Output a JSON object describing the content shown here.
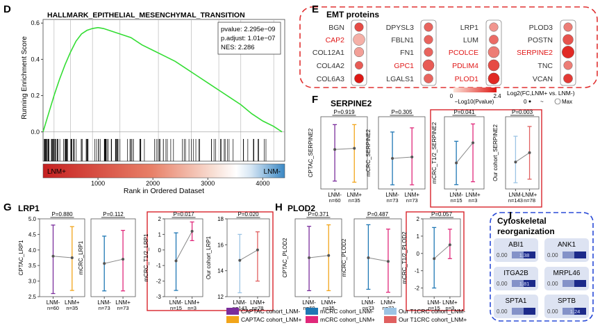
{
  "panel_labels": [
    "D",
    "E",
    "F",
    "G",
    "H",
    "I"
  ],
  "gsea": {
    "title": "HALLMARK_EPITHELIAL_MESENCHYMAL_TRANSITION",
    "ylabel": "Running Enrichment Score",
    "xlabel": "Rank in Ordered Dataset",
    "yticks": [
      "0.6",
      "0.4",
      "0.2",
      "0.0"
    ],
    "xticks": [
      "1000",
      "2000",
      "3000",
      "4000"
    ],
    "stats": [
      "pvalue: 2.295e−09",
      "p.adjust: 1.01e−07",
      "NES: 2.286"
    ],
    "bar_left": "LNM+",
    "bar_right": "LNM-"
  },
  "emt": {
    "title": "EMT proteins",
    "columns": [
      [
        {
          "gene": "BGN",
          "red": false
        },
        {
          "gene": "CAP2",
          "red": true
        },
        {
          "gene": "COL12A1",
          "red": false
        },
        {
          "gene": "COL4A2",
          "red": false
        },
        {
          "gene": "COL6A3",
          "red": false
        }
      ],
      [
        {
          "gene": "DPYSL3",
          "red": false
        },
        {
          "gene": "FBLN1",
          "red": false
        },
        {
          "gene": "FN1",
          "red": false
        },
        {
          "gene": "GPC1",
          "red": true
        },
        {
          "gene": "LGALS1",
          "red": false
        }
      ],
      [
        {
          "gene": "LRP1",
          "red": false
        },
        {
          "gene": "LUM",
          "red": false
        },
        {
          "gene": "PCOLCE",
          "red": true
        },
        {
          "gene": "PDLIM4",
          "red": true
        },
        {
          "gene": "PLOD1",
          "red": true
        }
      ],
      [
        {
          "gene": "PLOD3",
          "red": false
        },
        {
          "gene": "POSTN",
          "red": false
        },
        {
          "gene": "SERPINE2",
          "red": true
        },
        {
          "gene": "TNC",
          "red": false
        },
        {
          "gene": "VCAN",
          "red": false
        }
      ]
    ],
    "legend_color_ticks": [
      "0",
      "2.4"
    ],
    "legend_color_label": "−Log10(Pvalue)",
    "legend_size_label": "Log2(FC,LNM+ vs. LNM-)",
    "legend_size_ticks": [
      "0",
      "~",
      "Max"
    ]
  },
  "box_groups": {
    "F": {
      "gene": "SERPINE2"
    },
    "G": {
      "gene": "LRP1"
    },
    "H": {
      "gene": "PLOD2"
    }
  },
  "legend": [
    {
      "label": "CAPTAC cohort_LNM-",
      "color": "#7a2d9c"
    },
    {
      "label": "CAPTAC cohort_LNM+",
      "color": "#f2a51a"
    },
    {
      "label": "mCRC cohort_LNM-",
      "color": "#1f77b4"
    },
    {
      "label": "mCRC cohort_LNM+",
      "color": "#e0287a"
    },
    {
      "label": "Our T1CRC cohort_LNM-",
      "color": "#9cc4e4"
    },
    {
      "label": "Our T1CRC cohort_LNM+",
      "color": "#e06060"
    }
  ],
  "cytoskeletal": {
    "title": "Cytoskeletal reorganization",
    "items": [
      {
        "gene": "ABI1",
        "low": "0.00",
        "high": "1.38"
      },
      {
        "gene": "ANK1",
        "low": "0.00",
        "high": ""
      },
      {
        "gene": "ITGA2B",
        "low": "0.00",
        "high": "1.81"
      },
      {
        "gene": "MRPL46",
        "low": "0.00",
        "high": ""
      },
      {
        "gene": "SPTA1",
        "low": "0.00",
        "high": ""
      },
      {
        "gene": "SPTB",
        "low": "0.00",
        "high": "1.24"
      }
    ]
  },
  "chart_data": [
    {
      "panel": "D",
      "type": "line",
      "title": "HALLMARK_EPITHELIAL_MESENCHYMAL_TRANSITION",
      "xlabel": "Rank in Ordered Dataset",
      "ylabel": "Running Enrichment Score",
      "x": [
        0,
        100,
        200,
        300,
        400,
        500,
        600,
        700,
        800,
        900,
        1000,
        1100,
        1200,
        1300,
        1400,
        1600,
        1800,
        2000,
        2200,
        2400,
        2600,
        2800,
        3000,
        3200,
        3400,
        3600,
        3800,
        4000,
        4200,
        4350
      ],
      "y": [
        0.0,
        0.1,
        0.2,
        0.29,
        0.37,
        0.44,
        0.5,
        0.54,
        0.56,
        0.57,
        0.575,
        0.57,
        0.56,
        0.55,
        0.54,
        0.52,
        0.48,
        0.45,
        0.42,
        0.39,
        0.35,
        0.31,
        0.27,
        0.23,
        0.19,
        0.15,
        0.1,
        0.06,
        0.03,
        0.0
      ],
      "xlim": [
        0,
        4400
      ],
      "ylim": [
        -0.02,
        0.62
      ]
    },
    {
      "panel": "E",
      "type": "scatter",
      "title": "EMT proteins",
      "genes": [
        "BGN",
        "CAP2",
        "COL12A1",
        "COL4A2",
        "COL6A3",
        "DPYSL3",
        "FBLN1",
        "FN1",
        "GPC1",
        "LGALS1",
        "LRP1",
        "LUM",
        "PCOLCE",
        "PDLIM4",
        "PLOD1",
        "PLOD3",
        "POSTN",
        "SERPINE2",
        "TNC",
        "VCAN"
      ],
      "neg_log10_p": [
        1.8,
        0.6,
        0.8,
        1.6,
        2.4,
        1.5,
        1.5,
        1.5,
        1.6,
        1.5,
        0.9,
        1.4,
        1.2,
        1.8,
        2.2,
        1.2,
        1.7,
        2.2,
        1.2,
        2.0
      ],
      "log2fc_relative": [
        0.55,
        0.9,
        0.65,
        0.45,
        0.6,
        0.55,
        0.55,
        0.55,
        0.85,
        0.6,
        0.55,
        0.6,
        0.85,
        0.85,
        0.85,
        0.55,
        0.75,
        0.95,
        0.55,
        0.6
      ]
    },
    {
      "panel": "F",
      "gene": "SERPINE2",
      "type": "errorbar",
      "charts": [
        {
          "ylabel": "CPTAC_SERPINE2",
          "p": "P=0.919",
          "categories": [
            "LNM-\nn=60",
            "LNM+\nn=35"
          ],
          "colors": [
            "#7a2d9c",
            "#f2a51a"
          ],
          "mean": [
            0.85,
            0.9
          ],
          "low": [
            -0.55,
            -0.6
          ],
          "high": [
            1.95,
            1.95
          ],
          "ylim": [
            -0.9,
            2.3
          ]
        },
        {
          "ylabel": "mCRC_SERPINE2",
          "p": "P=0.305",
          "categories": [
            "LNM-\nn=73",
            "LNM+\nn=73"
          ],
          "colors": [
            "#1f77b4",
            "#e0287a"
          ],
          "mean": [
            -1.4,
            -1.3
          ],
          "low": [
            -3.3,
            -3.3
          ],
          "high": [
            0.5,
            0.8
          ],
          "ylim": [
            -3.6,
            1.6
          ]
        },
        {
          "ylabel": "mCRC_T1/2_SERPINE2",
          "p": "P=0.041",
          "categories": [
            "LNM-\nn=15",
            "LNM+\nn=3"
          ],
          "colors": [
            "#1f77b4",
            "#e0287a"
          ],
          "mean": [
            -1.7,
            -0.3
          ],
          "low": [
            -3.2,
            -3.0
          ],
          "high": [
            -0.2,
            1.0
          ],
          "ylim": [
            -3.5,
            1.5
          ]
        },
        {
          "ylabel": "Our cohort_SERPINE2",
          "p": "P=0.003",
          "categories": [
            "LNM-\nn=143",
            "LNM+\nn=78"
          ],
          "colors": [
            "#9cc4e4",
            "#e06060"
          ],
          "mean": [
            7.9,
            10.3
          ],
          "low": [
            2.6,
            3.5
          ],
          "high": [
            14.5,
            17.0
          ],
          "ylim": [
            1.0,
            19.5
          ]
        }
      ]
    },
    {
      "panel": "G",
      "gene": "LRP1",
      "type": "errorbar",
      "charts": [
        {
          "ylabel": "CPTAC_LRP1",
          "p": "P=0.880",
          "categories": [
            "LNM-\nn=60",
            "LNM+\nn=35"
          ],
          "colors": [
            "#7a2d9c",
            "#f2a51a"
          ],
          "mean": [
            3.8,
            3.75
          ],
          "low": [
            2.6,
            2.7
          ],
          "high": [
            4.8,
            4.75
          ],
          "ylim": [
            2.5,
            5.0
          ],
          "yticks": [
            2.5,
            3.0,
            3.5,
            4.0,
            4.5,
            5.0
          ]
        },
        {
          "ylabel": "mCRC_LRP1",
          "p": "P=0.112",
          "categories": [
            "LNM-\nn=73",
            "LNM+\nn=73"
          ],
          "colors": [
            "#1f77b4",
            "#e0287a"
          ],
          "mean": [
            -0.5,
            -0.2
          ],
          "low": [
            -2.4,
            -2.4
          ],
          "high": [
            1.4,
            1.8
          ],
          "ylim": [
            -2.8,
            2.6
          ]
        },
        {
          "ylabel": "mCRC_T1/2_LRP1",
          "p": "P=0.017",
          "categories": [
            "LNM-\nn=15",
            "LNM+\nn=3"
          ],
          "colors": [
            "#1f77b4",
            "#e0287a"
          ],
          "mean": [
            -0.7,
            1.2
          ],
          "low": [
            -2.6,
            0.6
          ],
          "high": [
            1.1,
            1.8
          ],
          "ylim": [
            -3,
            2
          ],
          "yticks": [
            -3,
            -2,
            -1,
            0,
            1,
            2
          ]
        },
        {
          "ylabel": "Our cohort_LRP1",
          "p": "P=0.020",
          "categories": [
            "LNM-\nn=143",
            "LNM+\nn=78"
          ],
          "colors": [
            "#9cc4e4",
            "#e06060"
          ],
          "mean": [
            14.8,
            15.6
          ],
          "low": [
            12.3,
            13.2
          ],
          "high": [
            16.8,
            17.0
          ],
          "ylim": [
            12,
            18
          ],
          "yticks": [
            12,
            14,
            16,
            18
          ]
        }
      ]
    },
    {
      "panel": "H",
      "gene": "PLOD2",
      "type": "errorbar",
      "charts": [
        {
          "ylabel": "CPTAC_PLOD2",
          "p": "P=0.371",
          "categories": [
            "LNM-\nn=60",
            "LNM+\nn=35"
          ],
          "colors": [
            "#7a2d9c",
            "#f2a51a"
          ],
          "mean": [
            1.7,
            1.85
          ],
          "low": [
            -0.5,
            -0.5
          ],
          "high": [
            3.8,
            3.9
          ],
          "ylim": [
            -0.9,
            4.3
          ]
        },
        {
          "ylabel": "mCRC_PLOD2",
          "p": "P=0.487",
          "categories": [
            "LNM-\nn=73",
            "LNM+\nn=73"
          ],
          "colors": [
            "#1f77b4",
            "#e0287a"
          ],
          "mean": [
            -0.05,
            -0.3
          ],
          "low": [
            -2.2,
            -2.4
          ],
          "high": [
            2.2,
            1.9
          ],
          "ylim": [
            -2.7,
            2.6
          ]
        },
        {
          "ylabel": "mCRC_T1/2_PLOD2",
          "p": "P=0.057",
          "categories": [
            "LNM-\nn=15",
            "LNM+\nn=3"
          ],
          "colors": [
            "#1f77b4",
            "#e0287a"
          ],
          "mean": [
            -0.3,
            0.5
          ],
          "low": [
            -2.0,
            -0.3
          ],
          "high": [
            1.5,
            1.4
          ],
          "ylim": [
            -2.5,
            2
          ],
          "yticks": [
            -2,
            -1,
            0,
            1,
            2
          ]
        }
      ]
    }
  ]
}
